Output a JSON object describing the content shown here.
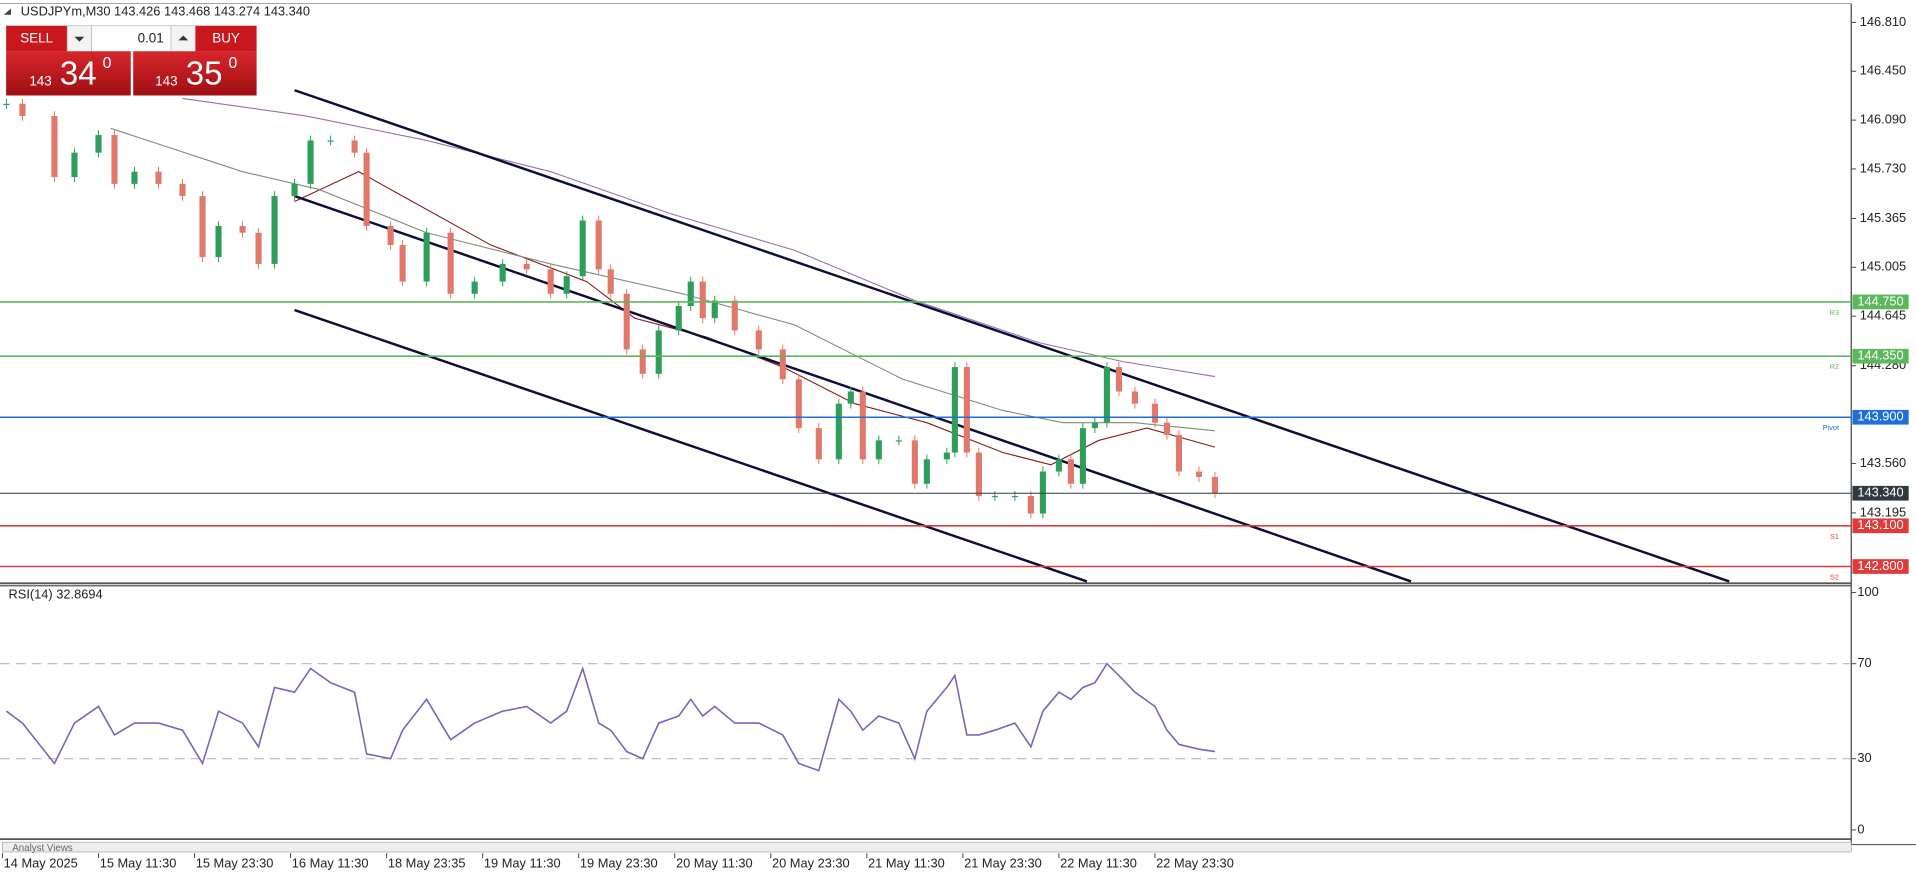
{
  "chart_data": [
    {
      "type": "candlestick",
      "header": "USDJPYm,M30  143.426 143.468 143.274 143.340",
      "xlim": [
        0,
        462
      ],
      "ylim": [
        142.69,
        146.93
      ],
      "color_up": "#2e9e5a",
      "color_down": "#e0786b",
      "x": [
        1,
        5,
        13,
        18,
        24,
        28,
        33,
        39,
        45,
        50,
        54,
        60,
        64,
        68,
        73,
        77,
        82,
        88,
        91,
        97,
        100,
        106,
        112,
        118,
        125,
        131,
        137,
        141,
        145,
        149,
        152,
        156,
        160,
        164,
        169,
        172,
        175,
        178,
        183,
        189,
        195,
        199,
        204,
        209,
        212,
        215,
        219,
        224,
        228,
        231,
        236,
        238,
        241,
        244,
        248,
        253,
        257,
        260,
        264,
        267,
        270,
        273,
        276,
        279,
        283,
        288,
        291,
        294,
        299,
        303
      ],
      "values": [
        146.21,
        146.12,
        145.67,
        145.85,
        145.98,
        145.62,
        145.71,
        145.62,
        145.53,
        145.08,
        145.31,
        145.26,
        145.03,
        145.53,
        145.62,
        145.94,
        145.94,
        145.85,
        145.31,
        145.17,
        144.9,
        145.26,
        144.81,
        144.9,
        145.03,
        144.99,
        144.81,
        144.94,
        145.35,
        144.99,
        144.81,
        144.4,
        144.22,
        144.54,
        144.72,
        144.9,
        144.63,
        144.76,
        144.54,
        144.4,
        144.18,
        143.82,
        143.59,
        144.0,
        144.09,
        143.59,
        143.73,
        143.73,
        143.41,
        143.59,
        143.64,
        144.27,
        143.64,
        143.32,
        143.32,
        143.32,
        143.19,
        143.5,
        143.59,
        143.41,
        143.82,
        143.86,
        144.27,
        144.09,
        144.0,
        143.86,
        143.77,
        143.5,
        143.46,
        143.34
      ],
      "moving_averages": [
        {
          "color": "#8b1a1a",
          "x": [
            73,
            89,
            100,
            122,
            146,
            158,
            176,
            195,
            213,
            231,
            250,
            262,
            274,
            286,
            303
          ],
          "values": [
            145.49,
            145.71,
            145.53,
            145.17,
            144.9,
            144.63,
            144.49,
            144.27,
            144.0,
            143.86,
            143.64,
            143.55,
            143.73,
            143.82,
            143.68
          ]
        },
        {
          "color": "#7a8f7a",
          "x": [
            27,
            60,
            79,
            106,
            137,
            170,
            198,
            225,
            250,
            265,
            283,
            303
          ],
          "values": [
            146.03,
            145.71,
            145.58,
            145.26,
            145.03,
            144.81,
            144.58,
            144.18,
            143.95,
            143.86,
            143.86,
            143.8
          ]
        },
        {
          "color": "#9a6fa8",
          "x": [
            45,
            76,
            106,
            137,
            167,
            198,
            228,
            259,
            280,
            303
          ],
          "values": [
            146.25,
            146.12,
            145.94,
            145.71,
            145.4,
            145.13,
            144.76,
            144.45,
            144.31,
            144.2
          ]
        }
      ],
      "trendlines": [
        {
          "color": "#0d0d3a",
          "x": [
            73,
            431.5
          ],
          "y": [
            146.31,
            142.69
          ]
        },
        {
          "color": "#0d0d3a",
          "x": [
            73,
            352
          ],
          "y": [
            145.53,
            142.69
          ]
        },
        {
          "color": "#0d0d3a",
          "x": [
            73,
            271
          ],
          "y": [
            144.69,
            142.69
          ]
        }
      ],
      "yticks": [
        {
          "value": 146.81,
          "label": "146.810"
        },
        {
          "value": 146.45,
          "label": "146.450"
        },
        {
          "value": 146.09,
          "label": "146.090"
        },
        {
          "value": 145.73,
          "label": "145.730"
        },
        145.365,
        145.005,
        144.645,
        {
          "value": 144.28,
          "label": "144.280"
        },
        {
          "value": 143.56,
          "label": "143.560"
        },
        143.195
      ],
      "levels": [
        {
          "value": 144.75,
          "label": "144.750",
          "tag": "R3",
          "color": "#5cb85c"
        },
        {
          "value": 144.35,
          "label": "144.350",
          "tag": "R2",
          "color": "#5cb85c"
        },
        {
          "value": 143.9,
          "label": "143.900",
          "tag": "Pivot",
          "color": "#1e6fd9"
        },
        {
          "value": 143.34,
          "label": "143.340",
          "color": "#2f3a40"
        },
        {
          "value": 143.1,
          "label": "143.100",
          "tag": "S1",
          "color": "#e03a3a"
        },
        {
          "value": 142.8,
          "label": "142.800",
          "tag": "S2",
          "color": "#e03a3a"
        }
      ]
    },
    {
      "type": "line",
      "title": "RSI(14) 32.8694",
      "xlim": [
        0,
        462
      ],
      "ylim": [
        0,
        100
      ],
      "yticks": [
        0,
        30,
        70,
        100
      ],
      "color": "#7566bd",
      "x": [
        1,
        5,
        13,
        18,
        24,
        28,
        33,
        39,
        45,
        50,
        54,
        60,
        64,
        68,
        73,
        77,
        82,
        88,
        91,
        97,
        100,
        106,
        112,
        118,
        125,
        131,
        137,
        141,
        145,
        149,
        152,
        156,
        160,
        164,
        169,
        172,
        175,
        178,
        183,
        189,
        195,
        199,
        204,
        209,
        212,
        215,
        219,
        224,
        228,
        231,
        236,
        238,
        241,
        244,
        248,
        253,
        257,
        260,
        264,
        267,
        270,
        273,
        276,
        279,
        283,
        288,
        291,
        294,
        299,
        303
      ],
      "values": [
        50,
        45,
        28,
        45,
        52,
        40,
        45,
        45,
        42,
        28,
        50,
        45,
        35,
        60,
        58,
        68,
        62,
        58,
        32,
        30,
        42,
        55,
        38,
        45,
        50,
        52,
        45,
        50,
        68,
        45,
        42,
        33,
        30,
        45,
        48,
        55,
        48,
        52,
        45,
        45,
        40,
        28,
        25,
        55,
        50,
        42,
        48,
        45,
        30,
        50,
        60,
        65,
        40,
        40,
        42,
        45,
        35,
        50,
        58,
        55,
        60,
        62,
        70,
        65,
        58,
        52,
        42,
        36,
        34,
        33
      ],
      "xticks": [
        {
          "value": 0,
          "label": "14 May 2025"
        },
        {
          "value": 24,
          "label": "15 May 11:30"
        },
        {
          "value": 48,
          "label": "15 May 23:30"
        },
        {
          "value": 72,
          "label": "16 May 11:30"
        },
        {
          "value": 96,
          "label": "18 May 23:35"
        },
        {
          "value": 120,
          "label": "19 May 11:30"
        },
        {
          "value": 144,
          "label": "19 May 23:30"
        },
        {
          "value": 168,
          "label": "20 May 11:30"
        },
        {
          "value": 192,
          "label": "20 May 23:30"
        },
        {
          "value": 216,
          "label": "21 May 11:30"
        },
        {
          "value": 240,
          "label": "21 May 23:30"
        },
        {
          "value": 264,
          "label": "22 May 11:30"
        },
        {
          "value": 288,
          "label": "22 May 23:30"
        }
      ]
    }
  ],
  "trade_panel": {
    "sell": "SELL",
    "buy": "BUY",
    "lot": "0.01",
    "sell_price": {
      "big": "143",
      "main": "34",
      "sup": "0"
    },
    "buy_price": {
      "big": "143",
      "main": "35",
      "sup": "0"
    }
  },
  "footer_tab": "Analyst Views"
}
